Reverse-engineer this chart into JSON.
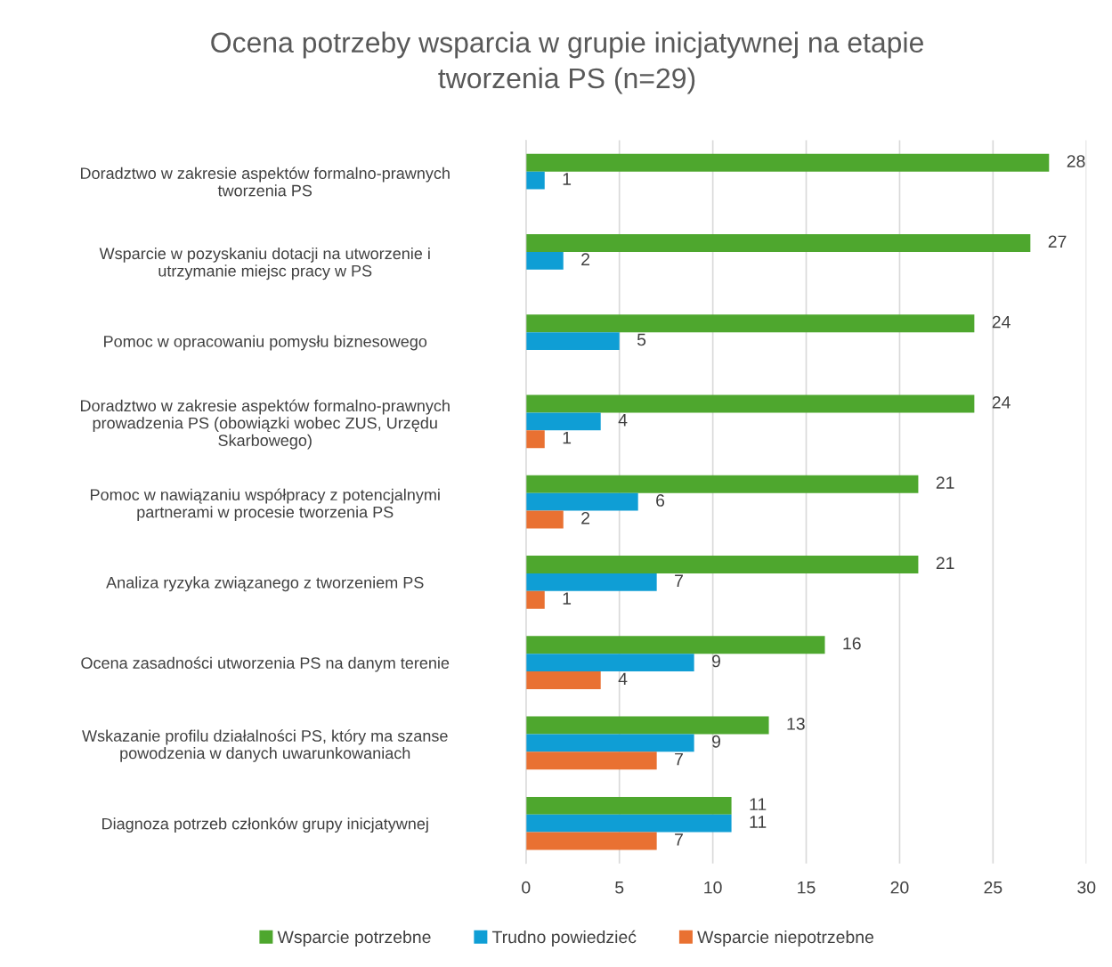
{
  "chart_data": {
    "type": "bar",
    "orientation": "horizontal",
    "title": "Ocena potrzeby wsparcia w grupie inicjatywnej na etapie\ntworzenia PS (n=29)",
    "categories": [
      "Doradztwo w zakresie aspektów formalno-prawnych\ntworzenia PS",
      "Wsparcie w pozyskaniu dotacji na utworzenie i\nutrzymanie miejsc pracy w PS",
      "Pomoc w opracowaniu pomysłu biznesowego",
      "Doradztwo w zakresie aspektów formalno-prawnych\nprowadzenia PS (obowiązki wobec ZUS, Urzędu\nSkarbowego)",
      "Pomoc w nawiązaniu współpracy z potencjalnymi\npartnerami w procesie tworzenia PS",
      "Analiza ryzyka związanego z tworzeniem PS",
      "Ocena zasadności utworzenia PS na danym terenie",
      "Wskazanie profilu działalności PS, który ma szanse\npowodzenia w danych uwarunkowaniach",
      "Diagnoza potrzeb członków grupy inicjatywnej"
    ],
    "series": [
      {
        "name": "Wsparcie potrzebne",
        "color": "#4ea72e",
        "values": [
          28,
          27,
          24,
          24,
          21,
          21,
          16,
          13,
          11
        ]
      },
      {
        "name": "Trudno powiedzieć",
        "color": "#0f9ed5",
        "values": [
          1,
          2,
          5,
          4,
          6,
          7,
          9,
          9,
          11
        ]
      },
      {
        "name": "Wsparcie niepotrzebne",
        "color": "#e97132",
        "values": [
          null,
          null,
          null,
          1,
          2,
          1,
          4,
          7,
          7
        ]
      }
    ],
    "xlim": [
      0,
      30
    ],
    "xticks": [
      0,
      5,
      10,
      15,
      20,
      25,
      30
    ],
    "grid": "x",
    "legend": "bottom",
    "data_labels": true
  }
}
